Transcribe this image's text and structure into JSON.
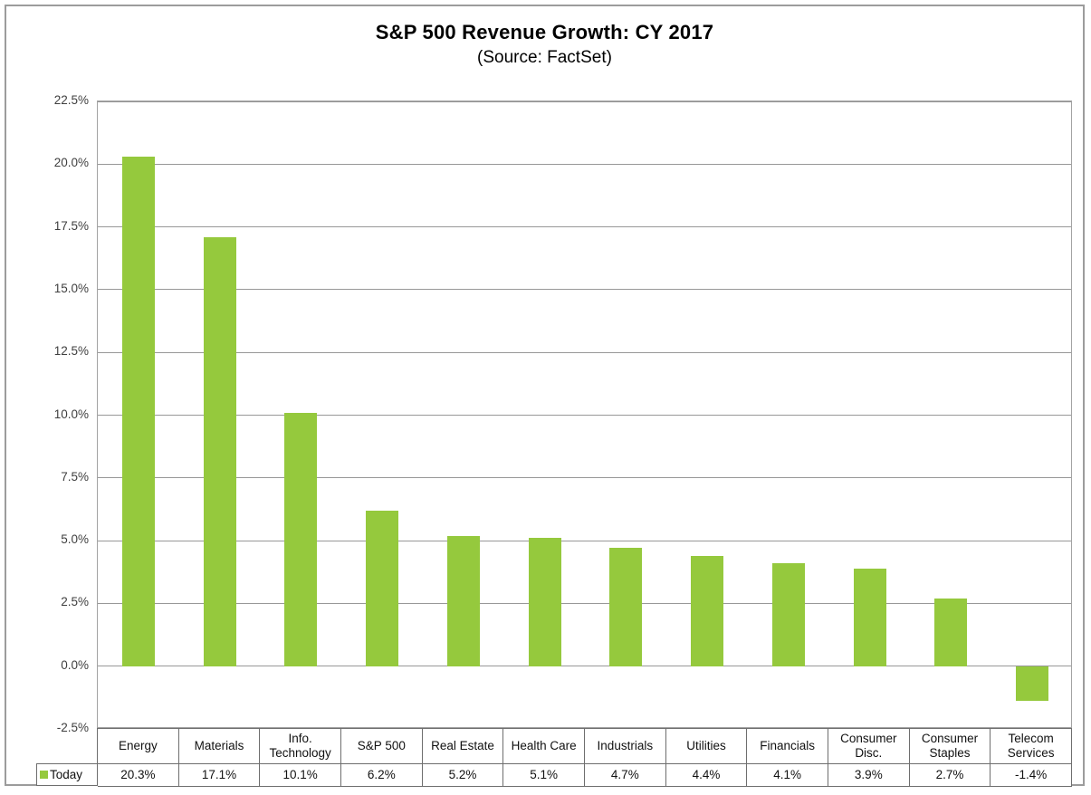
{
  "chart": {
    "title": "S&P 500 Revenue Growth: CY 2017",
    "subtitle": "(Source: FactSet)",
    "series_name": "Today"
  },
  "chart_data": {
    "type": "bar",
    "title": "S&P 500 Revenue Growth: CY 2017",
    "subtitle": "(Source: FactSet)",
    "categories": [
      "Energy",
      "Materials",
      "Info. Technology",
      "S&P 500",
      "Real Estate",
      "Health Care",
      "Industrials",
      "Utilities",
      "Financials",
      "Consumer Disc.",
      "Consumer Staples",
      "Telecom Services"
    ],
    "series": [
      {
        "name": "Today",
        "values": [
          20.3,
          17.1,
          10.1,
          6.2,
          5.2,
          5.1,
          4.7,
          4.4,
          4.1,
          3.9,
          2.7,
          -1.4
        ]
      }
    ],
    "value_labels": [
      "20.3%",
      "17.1%",
      "10.1%",
      "6.2%",
      "5.2%",
      "5.1%",
      "4.7%",
      "4.4%",
      "4.1%",
      "3.9%",
      "2.7%",
      "-1.4%"
    ],
    "xlabel": "",
    "ylabel": "",
    "ylim": [
      -2.5,
      22.5
    ],
    "yticks": [
      22.5,
      20.0,
      17.5,
      15.0,
      12.5,
      10.0,
      7.5,
      5.0,
      2.5,
      0.0,
      -2.5
    ],
    "ytick_labels": [
      "22.5%",
      "20.0%",
      "17.5%",
      "15.0%",
      "12.5%",
      "10.0%",
      "7.5%",
      "5.0%",
      "2.5%",
      "0.0%",
      "-2.5%"
    ],
    "grid": true,
    "legend_position": "bottom-left-data-table",
    "bar_color": "#95C93D"
  },
  "colors": {
    "bar": "#95C93D",
    "gridline": "#989898",
    "plot_border": "#a3a3a3",
    "table_border": "#6e6e6e",
    "outer_border": "#9c9c9c",
    "axis_text": "#3f3f3f",
    "table_text": "#111111"
  }
}
